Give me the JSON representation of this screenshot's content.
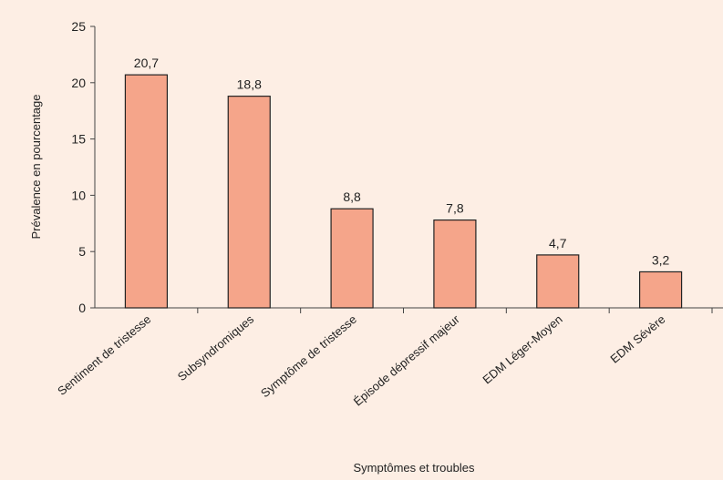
{
  "chart_data": {
    "type": "bar",
    "title": "",
    "xlabel": "Symptômes et troubles",
    "ylabel": "Prévalence en pourcentage",
    "categories": [
      "Sentiment de tristesse",
      "Subsyndromiques",
      "Symptôme de tristesse",
      "Épisode dépressif majeur",
      "EDM Léger-Moyen",
      "EDM Sévère"
    ],
    "values": [
      20.7,
      18.8,
      8.8,
      7.8,
      4.7,
      3.2
    ],
    "value_labels": [
      "20,7",
      "18,8",
      "8,8",
      "7,8",
      "4,7",
      "3,2"
    ],
    "ylim": [
      0,
      25
    ],
    "yticks": [
      0,
      5,
      10,
      15,
      20,
      25
    ],
    "grid": false,
    "legend": "none",
    "colors": {
      "background": "#fdeee4",
      "bar_fill": "#f5a58a",
      "bar_stroke": "#222222",
      "axis": "#444444"
    }
  }
}
